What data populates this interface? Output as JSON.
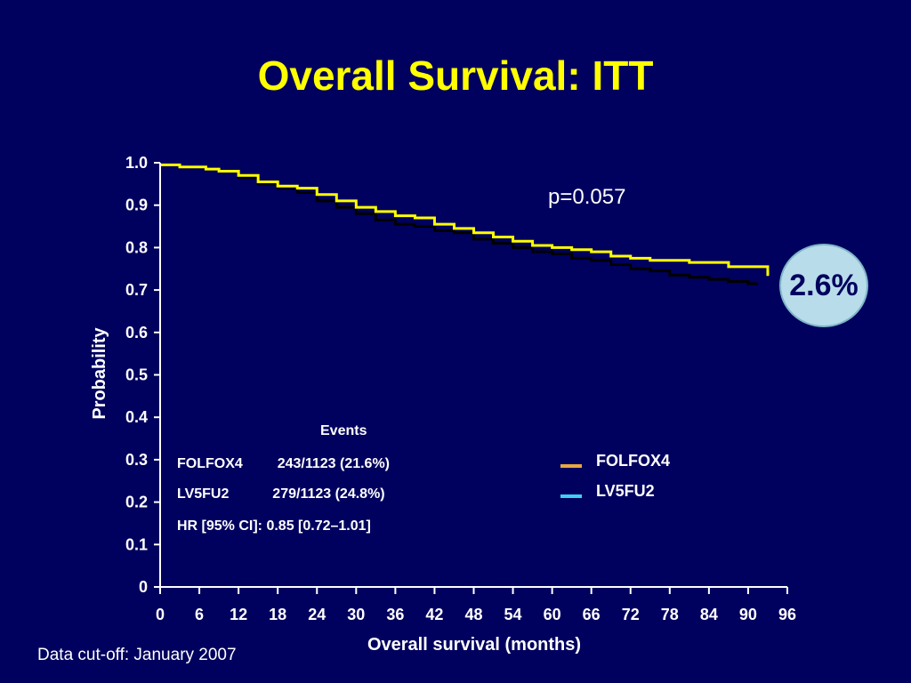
{
  "title": "Overall Survival: ITT",
  "p_value_text": "p=0.057",
  "difference_badge": "2.6%",
  "events": {
    "title": "Events",
    "rows": [
      {
        "name": "FOLFOX4",
        "value": "243/1123 (21.6%)"
      },
      {
        "name": "LV5FU2",
        "value": "279/1123 (24.8%)"
      }
    ],
    "hr_text": "HR [95% CI]: 0.85 [0.72–1.01]"
  },
  "legend": [
    {
      "label": "FOLFOX4",
      "color": "#e8a840"
    },
    {
      "label": "LV5FU2",
      "color": "#3fd0f0"
    }
  ],
  "footnote": "Data cut-off: January 2007",
  "chart_data": {
    "type": "line",
    "title": "Overall Survival: ITT",
    "xlabel": "Overall survival (months)",
    "ylabel": "Probability",
    "xlim": [
      0,
      96
    ],
    "ylim": [
      0,
      1.0
    ],
    "x_ticks": [
      "0",
      "6",
      "12",
      "18",
      "24",
      "30",
      "36",
      "42",
      "48",
      "54",
      "60",
      "66",
      "72",
      "78",
      "84",
      "90",
      "96"
    ],
    "y_ticks": [
      "0",
      "0.1",
      "0.2",
      "0.3",
      "0.4",
      "0.5",
      "0.6",
      "0.7",
      "0.8",
      "0.9",
      "1.0"
    ],
    "series": [
      {
        "name": "FOLFOX4",
        "color": "#ffff00",
        "x": [
          0,
          3,
          7,
          9,
          12,
          15,
          18,
          21,
          24,
          27,
          30,
          33,
          36,
          39,
          42,
          45,
          48,
          51,
          54,
          57,
          60,
          63,
          66,
          69,
          72,
          75,
          78,
          81,
          84,
          87,
          90,
          93
        ],
        "y": [
          0.995,
          0.99,
          0.985,
          0.98,
          0.97,
          0.955,
          0.945,
          0.94,
          0.925,
          0.91,
          0.895,
          0.885,
          0.875,
          0.87,
          0.855,
          0.845,
          0.835,
          0.825,
          0.815,
          0.805,
          0.8,
          0.795,
          0.79,
          0.78,
          0.775,
          0.77,
          0.77,
          0.765,
          0.765,
          0.755,
          0.755,
          0.75
        ]
      },
      {
        "name": "LV5FU2",
        "color": "#000000",
        "x": [
          0,
          3,
          7,
          9,
          12,
          15,
          18,
          21,
          24,
          27,
          30,
          33,
          36,
          39,
          42,
          45,
          48,
          51,
          54,
          57,
          60,
          63,
          66,
          69,
          72,
          75,
          78,
          81,
          84,
          87,
          90,
          91.5
        ],
        "y": [
          0.995,
          0.99,
          0.985,
          0.98,
          0.965,
          0.95,
          0.94,
          0.93,
          0.91,
          0.895,
          0.88,
          0.865,
          0.855,
          0.85,
          0.84,
          0.835,
          0.82,
          0.81,
          0.8,
          0.79,
          0.785,
          0.775,
          0.77,
          0.76,
          0.75,
          0.745,
          0.735,
          0.73,
          0.725,
          0.72,
          0.715,
          0.715
        ]
      }
    ]
  }
}
